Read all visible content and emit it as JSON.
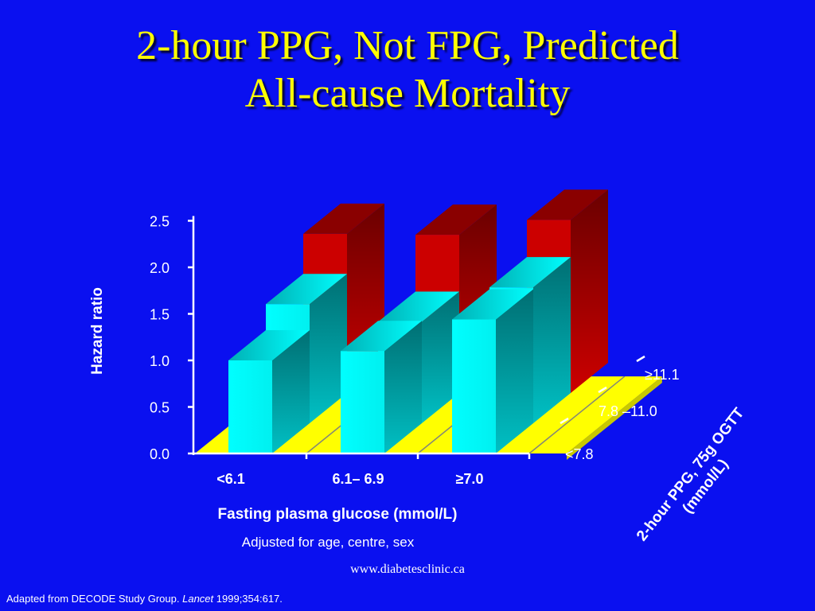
{
  "slide": {
    "title_line1": "2-hour PPG, Not FPG, Predicted",
    "title_line2": "All-cause Mortality",
    "note": "Adjusted for age, centre, sex",
    "website": "www.diabetesclinic.ca",
    "source_prefix": "Adapted from DECODE Study Group. ",
    "source_journal": "Lancet",
    "source_suffix": " 1999;354:617."
  },
  "colors": {
    "background": "#0a10f0",
    "title": "#ffff00",
    "floor": "#ffff00",
    "red_series": "#cc0000",
    "cyan_series": "#00ffff"
  },
  "chart_data": {
    "type": "bar",
    "subtype": "3d-grouped",
    "ylabel": "Hazard ratio",
    "xlabel": "Fasting plasma glucose (mmol/L)",
    "zlabel_line1": "2-hour PPG, 75g OGTT",
    "zlabel_line2": "(mmol/L)",
    "ylim": [
      0,
      2.5
    ],
    "yticks": [
      "0.0",
      "0.5",
      "1.0",
      "1.5",
      "2.0",
      "2.5"
    ],
    "categories": [
      "<6.1",
      "6.1– 6.9",
      "≥7.0"
    ],
    "series": [
      {
        "name": "<7.8",
        "values": [
          1.0,
          1.1,
          1.44
        ]
      },
      {
        "name": "7.8 –11.0",
        "values": [
          1.28,
          1.09,
          1.46
        ]
      },
      {
        "name": "≥11.1",
        "values": [
          1.71,
          1.7,
          1.86
        ]
      }
    ]
  }
}
